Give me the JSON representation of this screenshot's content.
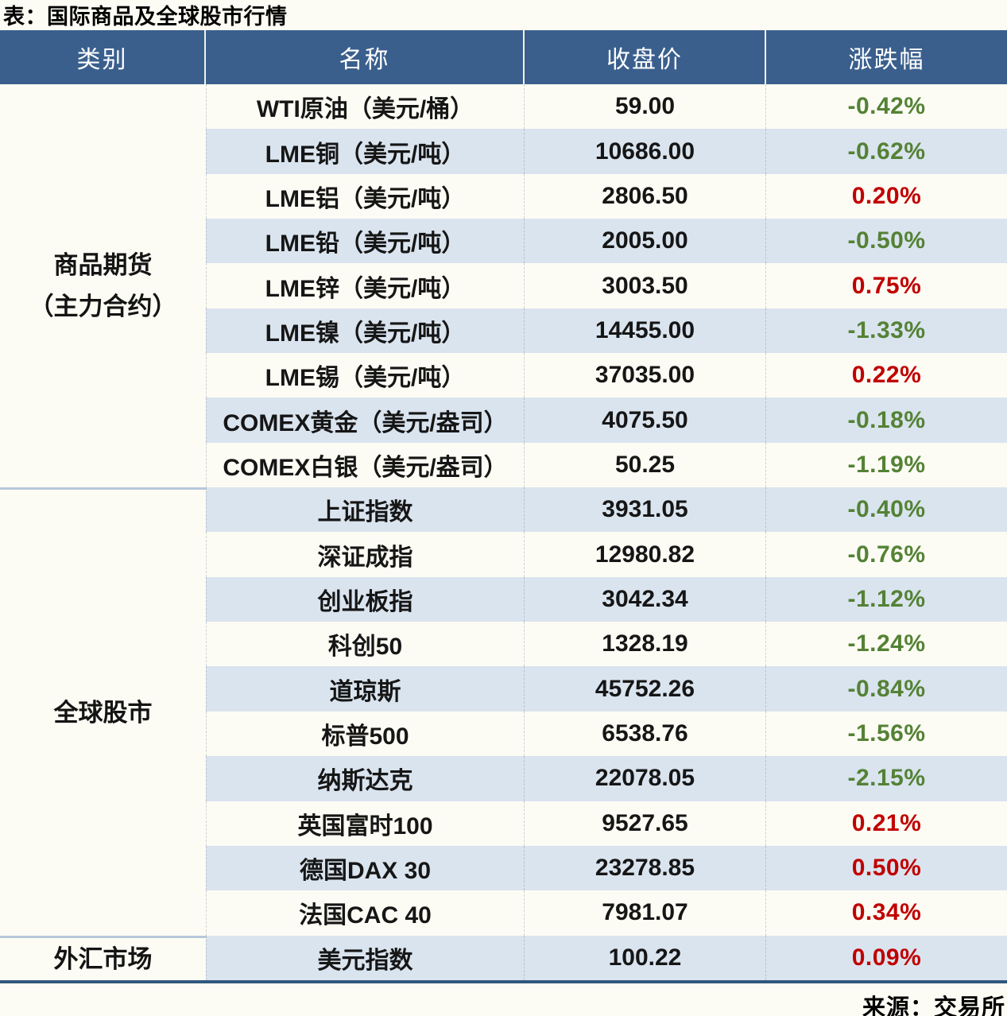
{
  "title": "表：国际商品及全球股市行情",
  "source": "来源：交易所",
  "colors": {
    "header_bg": "#3a5f8d",
    "stripe_bg": "#dae4ef",
    "up": "#c00000",
    "down": "#548235",
    "bottom_border": "#2f587d",
    "section_divider": "#b6c8da"
  },
  "chart_data": {
    "type": "table",
    "title": "表：国际商品及全球股市行情",
    "columns": [
      "类别",
      "名称",
      "收盘价",
      "涨跌幅"
    ],
    "sections": [
      {
        "category": "商品期货（主力合约）",
        "category_lines": [
          "商品期货",
          "（主力合约）"
        ],
        "rows": [
          {
            "name": "WTI原油（美元/桶）",
            "close": "59.00",
            "change": "-0.42%"
          },
          {
            "name": "LME铜（美元/吨）",
            "close": "10686.00",
            "change": "-0.62%"
          },
          {
            "name": "LME铝（美元/吨）",
            "close": "2806.50",
            "change": "0.20%"
          },
          {
            "name": "LME铅（美元/吨）",
            "close": "2005.00",
            "change": "-0.50%"
          },
          {
            "name": "LME锌（美元/吨）",
            "close": "3003.50",
            "change": "0.75%"
          },
          {
            "name": "LME镍（美元/吨）",
            "close": "14455.00",
            "change": "-1.33%"
          },
          {
            "name": "LME锡（美元/吨）",
            "close": "37035.00",
            "change": "0.22%"
          },
          {
            "name": "COMEX黄金（美元/盎司）",
            "close": "4075.50",
            "change": "-0.18%"
          },
          {
            "name": "COMEX白银（美元/盎司）",
            "close": "50.25",
            "change": "-1.19%"
          }
        ]
      },
      {
        "category": "全球股市",
        "category_lines": [
          "全球股市"
        ],
        "rows": [
          {
            "name": "上证指数",
            "close": "3931.05",
            "change": "-0.40%"
          },
          {
            "name": "深证成指",
            "close": "12980.82",
            "change": "-0.76%"
          },
          {
            "name": "创业板指",
            "close": "3042.34",
            "change": "-1.12%"
          },
          {
            "name": "科创50",
            "close": "1328.19",
            "change": "-1.24%"
          },
          {
            "name": "道琼斯",
            "close": "45752.26",
            "change": "-0.84%"
          },
          {
            "name": "标普500",
            "close": "6538.76",
            "change": "-1.56%"
          },
          {
            "name": "纳斯达克",
            "close": "22078.05",
            "change": "-2.15%"
          },
          {
            "name": "英国富时100",
            "close": "9527.65",
            "change": "0.21%"
          },
          {
            "name": "德国DAX 30",
            "close": "23278.85",
            "change": "0.50%"
          },
          {
            "name": "法国CAC 40",
            "close": "7981.07",
            "change": "0.34%"
          }
        ]
      },
      {
        "category": "外汇市场",
        "category_lines": [
          "外汇市场"
        ],
        "rows": [
          {
            "name": "美元指数",
            "close": "100.22",
            "change": "0.09%"
          }
        ]
      }
    ]
  }
}
